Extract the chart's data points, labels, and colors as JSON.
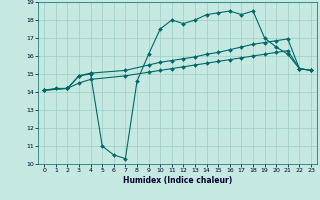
{
  "title": "",
  "xlabel": "Humidex (Indice chaleur)",
  "xlim": [
    -0.5,
    23.5
  ],
  "ylim": [
    10,
    19
  ],
  "xticks": [
    0,
    1,
    2,
    3,
    4,
    5,
    6,
    7,
    8,
    9,
    10,
    11,
    12,
    13,
    14,
    15,
    16,
    17,
    18,
    19,
    20,
    21,
    22,
    23
  ],
  "yticks": [
    10,
    11,
    12,
    13,
    14,
    15,
    16,
    17,
    18,
    19
  ],
  "background_color": "#c5e8e0",
  "grid_color": "#9ecec5",
  "line_color": "#006868",
  "line1_x": [
    0,
    1,
    2,
    3,
    4,
    5,
    6,
    7,
    8,
    9,
    10,
    11,
    12,
    13,
    14,
    15,
    16,
    17,
    18,
    19,
    20,
    21,
    22,
    23
  ],
  "line1_y": [
    14.1,
    14.2,
    14.2,
    14.9,
    15.0,
    11.0,
    10.5,
    10.3,
    14.6,
    16.1,
    17.5,
    18.0,
    17.8,
    18.0,
    18.3,
    18.4,
    18.5,
    18.3,
    18.5,
    17.0,
    16.5,
    16.1,
    15.3,
    15.2
  ],
  "line2_x": [
    0,
    2,
    3,
    4,
    7,
    9,
    10,
    11,
    12,
    13,
    14,
    15,
    16,
    17,
    18,
    19,
    20,
    21,
    22,
    23
  ],
  "line2_y": [
    14.1,
    14.2,
    14.9,
    15.05,
    15.2,
    15.5,
    15.65,
    15.75,
    15.85,
    15.95,
    16.1,
    16.2,
    16.35,
    16.5,
    16.65,
    16.75,
    16.85,
    16.95,
    15.3,
    15.2
  ],
  "line3_x": [
    0,
    2,
    3,
    4,
    7,
    9,
    10,
    11,
    12,
    13,
    14,
    15,
    16,
    17,
    18,
    19,
    20,
    21,
    22,
    23
  ],
  "line3_y": [
    14.1,
    14.2,
    14.5,
    14.7,
    14.9,
    15.1,
    15.2,
    15.3,
    15.4,
    15.5,
    15.6,
    15.7,
    15.8,
    15.9,
    16.0,
    16.1,
    16.2,
    16.3,
    15.3,
    15.2
  ]
}
